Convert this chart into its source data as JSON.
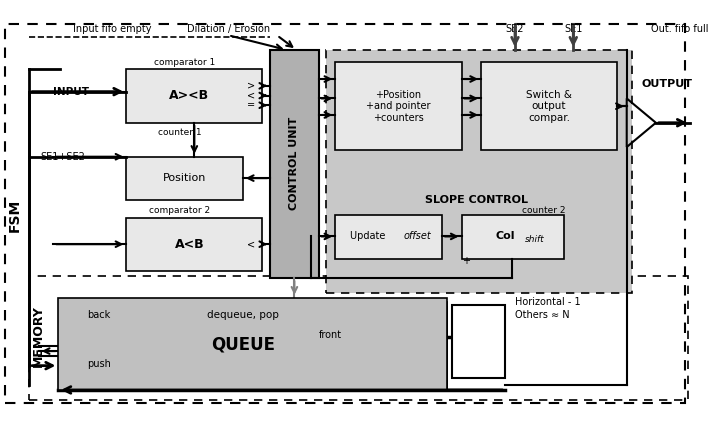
{
  "fig_width": 7.16,
  "fig_height": 4.33,
  "dpi": 100,
  "bg_color": "#ffffff",
  "light_gray": "#d0d0d0",
  "mid_gray": "#b0b0b0",
  "dark_gray": "#606060",
  "box_fill": "#e8e8e8",
  "slope_fill": "#c8c8c8",
  "queue_fill": "#c0c0c0",
  "control_fill": "#a0a0a0",
  "title_labels": {
    "input_fifo": "Input fifo empty",
    "dilation": "Dilation / Erosion",
    "se2": "SE2",
    "se1": "SE1",
    "out_fifo": "Out. fifo full",
    "input": "INPUT",
    "se1se2": "SE1+SE2",
    "output": "OUTPUT",
    "fsm": "FSM",
    "memory": "MEMORY",
    "comp1": "comparator 1",
    "comp2": "comparator 2",
    "counter1": "counter 1",
    "counter2": "counter 2",
    "axb_label": "A><B",
    "acb_label": "A<B",
    "position_label": "Position",
    "control_label": "CONTROL UNIT",
    "pos_ptr": "+Position\n+and pointer\n+counters",
    "switch_out": "Switch &\noutput\ncompar.",
    "slope_ctrl": "SLOPE CONTROL",
    "update_offset": "Update offset",
    "col_shift": "Col",
    "shift_label": "shift",
    "queue_label": "QUEUE",
    "dequeue_pop": "dequeue, pop",
    "front": "front",
    "back": "back",
    "push": "push",
    "horiz": "Horizontal - 1",
    "others": "Others ≈ N"
  }
}
